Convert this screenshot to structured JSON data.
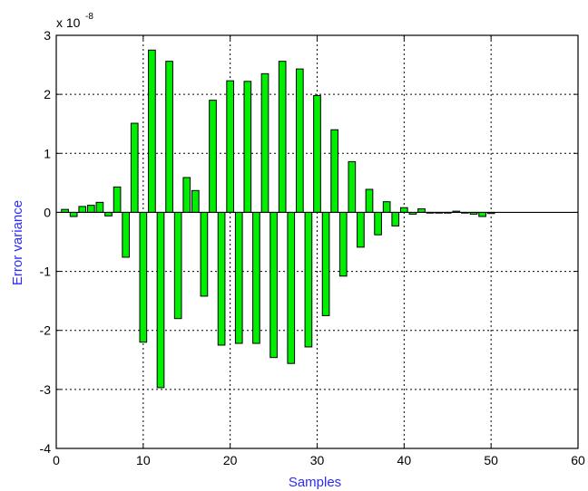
{
  "chart_data": {
    "type": "bar",
    "title": "",
    "xlabel": "Samples",
    "ylabel": "Error variance",
    "y_scale_note": {
      "base": "x 10",
      "exponent": "-8"
    },
    "xlim": [
      0,
      60
    ],
    "ylim": [
      -4,
      3
    ],
    "x_ticks": [
      0,
      10,
      20,
      30,
      40,
      50,
      60
    ],
    "x_tick_labels": [
      "0",
      "10",
      "20",
      "30",
      "40",
      "50",
      "60"
    ],
    "y_ticks": [
      -4,
      -3,
      -2,
      -1,
      0,
      1,
      2,
      3
    ],
    "y_tick_labels": [
      "-4",
      "-3",
      "-2",
      "-1",
      "0",
      "1",
      "2",
      "3"
    ],
    "grid": true,
    "bar_color": "#00ee00",
    "bar_edge_color": "#000000",
    "axis_label_color": "#2b2bff",
    "x": [
      1,
      2,
      3,
      4,
      5,
      6,
      7,
      8,
      9,
      10,
      11,
      12,
      13,
      14,
      15,
      16,
      17,
      18,
      19,
      20,
      21,
      22,
      23,
      24,
      25,
      26,
      27,
      28,
      29,
      30,
      31,
      32,
      33,
      34,
      35,
      36,
      37,
      38,
      39,
      40,
      41,
      42,
      43,
      44,
      45,
      46,
      47,
      48,
      49,
      50
    ],
    "values": [
      0.05,
      -0.07,
      0.1,
      0.12,
      0.17,
      -0.06,
      0.43,
      -0.76,
      1.51,
      -2.2,
      2.75,
      -2.97,
      2.56,
      -1.8,
      0.59,
      0.37,
      -1.42,
      1.9,
      -2.25,
      2.23,
      -2.22,
      2.22,
      -2.22,
      2.35,
      -2.46,
      2.56,
      -2.56,
      2.43,
      -2.28,
      1.98,
      -1.75,
      1.4,
      -1.08,
      0.86,
      -0.59,
      0.39,
      -0.38,
      0.18,
      -0.23,
      0.08,
      -0.03,
      0.06,
      0.0,
      0.0,
      0.0,
      0.02,
      0.0,
      -0.03,
      -0.07,
      -0.02
    ]
  }
}
